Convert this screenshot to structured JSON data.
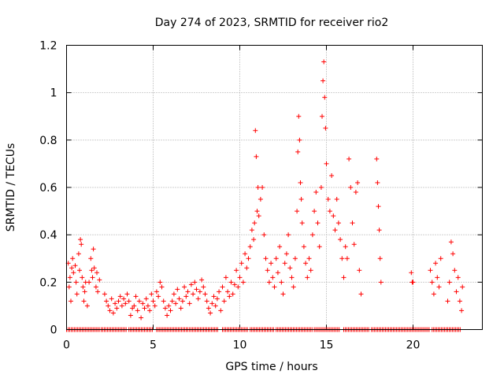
{
  "chart_data": {
    "type": "scatter",
    "title": "Day 274 of 2023, SRMTID for receiver rio2",
    "xlabel": "GPS time / hours",
    "ylabel": "SRMTID / TECUs",
    "xlim": [
      0,
      24
    ],
    "ylim": [
      0,
      1.2
    ],
    "x_ticks": [
      0,
      5,
      10,
      15,
      20
    ],
    "x_tick_labels": [
      "0",
      "5",
      "10",
      "15",
      "20"
    ],
    "y_ticks": [
      0,
      0.2,
      0.4,
      0.6,
      0.8,
      1.0,
      1.2
    ],
    "y_tick_labels": [
      "0",
      "0.2",
      "0.4",
      "0.6",
      "0.8",
      "1",
      "1.2"
    ],
    "grid": true,
    "marker": "+",
    "series": [
      {
        "name": "SRMTID",
        "color": "#ff0000",
        "points": [
          [
            0.1,
            0.28
          ],
          [
            0.15,
            0.18
          ],
          [
            0.2,
            0.22
          ],
          [
            0.25,
            0.12
          ],
          [
            0.3,
            0.26
          ],
          [
            0.35,
            0.3
          ],
          [
            0.4,
            0.24
          ],
          [
            0.5,
            0.27
          ],
          [
            0.55,
            0.2
          ],
          [
            0.6,
            0.15
          ],
          [
            0.7,
            0.32
          ],
          [
            0.75,
            0.25
          ],
          [
            0.8,
            0.38
          ],
          [
            0.85,
            0.36
          ],
          [
            0.9,
            0.22
          ],
          [
            0.95,
            0.18
          ],
          [
            1.0,
            0.12
          ],
          [
            1.05,
            0.16
          ],
          [
            1.1,
            0.2
          ],
          [
            1.2,
            0.1
          ],
          [
            1.3,
            0.2
          ],
          [
            1.4,
            0.3
          ],
          [
            1.45,
            0.25
          ],
          [
            1.5,
            0.22
          ],
          [
            1.55,
            0.34
          ],
          [
            1.6,
            0.26
          ],
          [
            1.7,
            0.18
          ],
          [
            1.75,
            0.24
          ],
          [
            1.8,
            0.16
          ],
          [
            1.9,
            0.21
          ],
          [
            2.2,
            0.15
          ],
          [
            2.3,
            0.12
          ],
          [
            2.4,
            0.1
          ],
          [
            2.5,
            0.08
          ],
          [
            2.6,
            0.13
          ],
          [
            2.7,
            0.07
          ],
          [
            2.8,
            0.11
          ],
          [
            2.9,
            0.09
          ],
          [
            3.0,
            0.12
          ],
          [
            3.1,
            0.14
          ],
          [
            3.2,
            0.1
          ],
          [
            3.3,
            0.13
          ],
          [
            3.4,
            0.11
          ],
          [
            3.5,
            0.15
          ],
          [
            3.6,
            0.12
          ],
          [
            3.7,
            0.06
          ],
          [
            3.8,
            0.09
          ],
          [
            3.9,
            0.1
          ],
          [
            4.0,
            0.14
          ],
          [
            4.1,
            0.08
          ],
          [
            4.2,
            0.12
          ],
          [
            4.3,
            0.05
          ],
          [
            4.4,
            0.11
          ],
          [
            4.5,
            0.09
          ],
          [
            4.6,
            0.13
          ],
          [
            4.7,
            0.1
          ],
          [
            4.8,
            0.08
          ],
          [
            4.9,
            0.15
          ],
          [
            5.0,
            0.12
          ],
          [
            5.1,
            0.1
          ],
          [
            5.2,
            0.16
          ],
          [
            5.3,
            0.14
          ],
          [
            5.4,
            0.2
          ],
          [
            5.5,
            0.18
          ],
          [
            5.6,
            0.12
          ],
          [
            5.7,
            0.09
          ],
          [
            5.8,
            0.06
          ],
          [
            5.9,
            0.1
          ],
          [
            6.0,
            0.08
          ],
          [
            6.1,
            0.12
          ],
          [
            6.2,
            0.15
          ],
          [
            6.3,
            0.11
          ],
          [
            6.4,
            0.17
          ],
          [
            6.5,
            0.13
          ],
          [
            6.6,
            0.09
          ],
          [
            6.7,
            0.12
          ],
          [
            6.8,
            0.18
          ],
          [
            6.9,
            0.14
          ],
          [
            7.0,
            0.16
          ],
          [
            7.1,
            0.11
          ],
          [
            7.2,
            0.19
          ],
          [
            7.3,
            0.15
          ],
          [
            7.4,
            0.2
          ],
          [
            7.5,
            0.17
          ],
          [
            7.6,
            0.13
          ],
          [
            7.7,
            0.16
          ],
          [
            7.8,
            0.21
          ],
          [
            7.9,
            0.18
          ],
          [
            8.0,
            0.15
          ],
          [
            8.1,
            0.12
          ],
          [
            8.2,
            0.09
          ],
          [
            8.3,
            0.07
          ],
          [
            8.4,
            0.11
          ],
          [
            8.5,
            0.14
          ],
          [
            8.6,
            0.1
          ],
          [
            8.7,
            0.13
          ],
          [
            8.8,
            0.16
          ],
          [
            8.9,
            0.08
          ],
          [
            9.0,
            0.18
          ],
          [
            9.1,
            0.12
          ],
          [
            9.2,
            0.22
          ],
          [
            9.3,
            0.16
          ],
          [
            9.4,
            0.14
          ],
          [
            9.5,
            0.2
          ],
          [
            9.6,
            0.15
          ],
          [
            9.7,
            0.19
          ],
          [
            9.8,
            0.25
          ],
          [
            9.9,
            0.18
          ],
          [
            10.0,
            0.22
          ],
          [
            10.1,
            0.28
          ],
          [
            10.2,
            0.2
          ],
          [
            10.3,
            0.32
          ],
          [
            10.4,
            0.26
          ],
          [
            10.5,
            0.3
          ],
          [
            10.6,
            0.35
          ],
          [
            10.7,
            0.42
          ],
          [
            10.8,
            0.38
          ],
          [
            10.85,
            0.45
          ],
          [
            10.9,
            0.84
          ],
          [
            10.95,
            0.73
          ],
          [
            11.0,
            0.5
          ],
          [
            11.05,
            0.6
          ],
          [
            11.1,
            0.48
          ],
          [
            11.2,
            0.55
          ],
          [
            11.3,
            0.6
          ],
          [
            11.4,
            0.4
          ],
          [
            11.5,
            0.3
          ],
          [
            11.6,
            0.25
          ],
          [
            11.7,
            0.2
          ],
          [
            11.8,
            0.28
          ],
          [
            11.9,
            0.22
          ],
          [
            12.0,
            0.18
          ],
          [
            12.1,
            0.3
          ],
          [
            12.2,
            0.24
          ],
          [
            12.3,
            0.35
          ],
          [
            12.4,
            0.2
          ],
          [
            12.5,
            0.15
          ],
          [
            12.6,
            0.28
          ],
          [
            12.7,
            0.32
          ],
          [
            12.8,
            0.4
          ],
          [
            12.9,
            0.26
          ],
          [
            13.0,
            0.22
          ],
          [
            13.1,
            0.18
          ],
          [
            13.2,
            0.3
          ],
          [
            13.3,
            0.5
          ],
          [
            13.35,
            0.75
          ],
          [
            13.4,
            0.9
          ],
          [
            13.45,
            0.8
          ],
          [
            13.5,
            0.62
          ],
          [
            13.55,
            0.55
          ],
          [
            13.6,
            0.45
          ],
          [
            13.7,
            0.35
          ],
          [
            13.8,
            0.28
          ],
          [
            13.9,
            0.22
          ],
          [
            14.0,
            0.3
          ],
          [
            14.1,
            0.25
          ],
          [
            14.2,
            0.4
          ],
          [
            14.3,
            0.5
          ],
          [
            14.4,
            0.58
          ],
          [
            14.5,
            0.45
          ],
          [
            14.6,
            0.35
          ],
          [
            14.7,
            0.6
          ],
          [
            14.75,
            0.9
          ],
          [
            14.8,
            1.05
          ],
          [
            14.85,
            1.13
          ],
          [
            14.9,
            0.98
          ],
          [
            14.95,
            0.85
          ],
          [
            15.0,
            0.7
          ],
          [
            15.1,
            0.55
          ],
          [
            15.2,
            0.5
          ],
          [
            15.3,
            0.65
          ],
          [
            15.4,
            0.48
          ],
          [
            15.5,
            0.42
          ],
          [
            15.6,
            0.55
          ],
          [
            15.7,
            0.45
          ],
          [
            15.8,
            0.38
          ],
          [
            15.9,
            0.3
          ],
          [
            16.0,
            0.22
          ],
          [
            16.1,
            0.35
          ],
          [
            16.2,
            0.3
          ],
          [
            16.3,
            0.72
          ],
          [
            16.4,
            0.6
          ],
          [
            16.5,
            0.45
          ],
          [
            16.6,
            0.36
          ],
          [
            16.7,
            0.58
          ],
          [
            16.8,
            0.62
          ],
          [
            16.9,
            0.25
          ],
          [
            17.0,
            0.15
          ],
          [
            17.9,
            0.72
          ],
          [
            17.95,
            0.62
          ],
          [
            18.0,
            0.52
          ],
          [
            18.05,
            0.42
          ],
          [
            18.1,
            0.3
          ],
          [
            18.15,
            0.2
          ],
          [
            19.9,
            0.24
          ],
          [
            19.95,
            0.2
          ],
          [
            20.0,
            0.2
          ],
          [
            21.0,
            0.25
          ],
          [
            21.1,
            0.2
          ],
          [
            21.2,
            0.15
          ],
          [
            21.3,
            0.28
          ],
          [
            21.4,
            0.22
          ],
          [
            21.5,
            0.18
          ],
          [
            21.6,
            0.3
          ],
          [
            22.0,
            0.12
          ],
          [
            22.1,
            0.2
          ],
          [
            22.2,
            0.37
          ],
          [
            22.3,
            0.32
          ],
          [
            22.4,
            0.25
          ],
          [
            22.5,
            0.16
          ],
          [
            22.6,
            0.22
          ],
          [
            22.7,
            0.12
          ],
          [
            22.8,
            0.08
          ],
          [
            22.85,
            0.18
          ]
        ]
      }
    ],
    "zero_band": [
      [
        0,
        1.9
      ],
      [
        2.0,
        3.5
      ],
      [
        3.6,
        5.0
      ],
      [
        5.2,
        7.0
      ],
      [
        7.1,
        8.8
      ],
      [
        9.0,
        10.5
      ],
      [
        10.6,
        12.0
      ],
      [
        12.1,
        14.2
      ],
      [
        14.3,
        15.8
      ],
      [
        16.0,
        17.5
      ],
      [
        17.6,
        21.0
      ],
      [
        21.1,
        22.8
      ]
    ]
  }
}
